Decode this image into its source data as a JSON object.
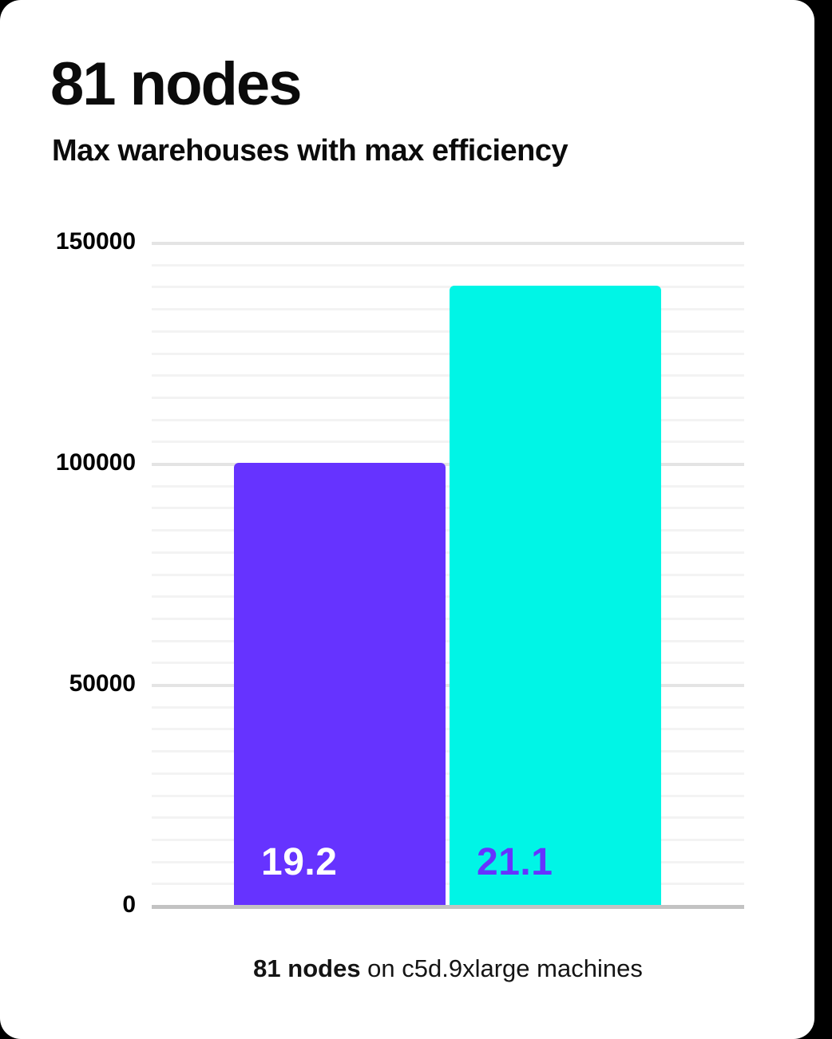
{
  "header": {
    "title": "81 nodes",
    "subtitle": "Max warehouses with max efficiency"
  },
  "caption": {
    "bold": "81 nodes",
    "rest": " on c5d.9xlarge machines"
  },
  "colors": {
    "page_bg": "#000000",
    "card_bg": "#ffffff",
    "text": "#0b0b0b",
    "bar_19_2": "#6633ff",
    "bar_21_1": "#00f5e6",
    "bar_19_2_label": "#ffffff",
    "bar_21_1_label": "#6633ff",
    "grid_minor": "#f3f3f3",
    "grid_major": "#e4e4e4",
    "axis_line": "#c3c3c3"
  },
  "chart_data": {
    "type": "bar",
    "title": "81 nodes",
    "subtitle": "Max warehouses with max efficiency",
    "categories": [
      "19.2",
      "21.1"
    ],
    "values": [
      100000,
      140000
    ],
    "bars": [
      {
        "label": "19.2",
        "value": 100000,
        "color": "#6633ff",
        "label_color": "#ffffff"
      },
      {
        "label": "21.1",
        "value": 140000,
        "color": "#00f5e6",
        "label_color": "#6633ff"
      }
    ],
    "xlabel": "81 nodes on c5d.9xlarge machines",
    "ylabel": "",
    "ylim": [
      0,
      150000
    ],
    "yticks": [
      0,
      50000,
      100000,
      150000
    ],
    "ytick_labels": [
      "0",
      "50000",
      "100000",
      "150000"
    ],
    "grid_minor_step": 5000,
    "grid": "horizontal",
    "legend": "none",
    "value_labels_position": "inside-bottom"
  }
}
